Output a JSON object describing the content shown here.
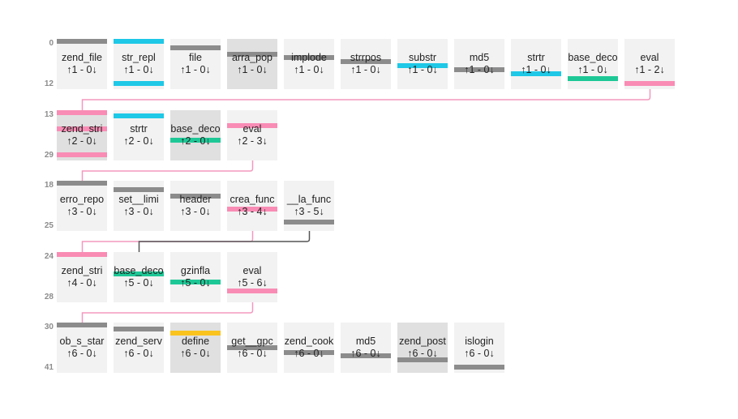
{
  "colors": {
    "gray": "#8c8c8c",
    "cyan": "#1ec8e6",
    "pink": "#f98cb4",
    "green": "#1ec896",
    "yellow": "#fac31e",
    "link_pink": "#f498bd",
    "link_dark": "#555555"
  },
  "rows": [
    {
      "start": "0",
      "end": "12",
      "nodes": [
        {
          "label": "zend_file",
          "counts": "↑1 - 0↓",
          "color": "gray",
          "bar": 0.0,
          "shade": false
        },
        {
          "label": "str_repl",
          "counts": "↑1 - 0↓",
          "color": "cyan",
          "bar": 0.0,
          "bar2": 0.92,
          "shade": false
        },
        {
          "label": "file",
          "counts": "↑1 - 0↓",
          "color": "gray",
          "bar": 0.14,
          "shade": false
        },
        {
          "label": "arra_pop",
          "counts": "↑1 - 0↓",
          "color": "gray",
          "bar": 0.28,
          "shade": true
        },
        {
          "label": "implode",
          "counts": "↑1 - 0↓",
          "color": "gray",
          "bar": 0.36,
          "shade": false
        },
        {
          "label": "strrpos",
          "counts": "↑1 - 0↓",
          "color": "gray",
          "bar": 0.45,
          "shade": false
        },
        {
          "label": "substr",
          "counts": "↑1 - 0↓",
          "color": "cyan",
          "bar": 0.53,
          "shade": false
        },
        {
          "label": "md5",
          "counts": "↑1 - 0↓",
          "color": "gray",
          "bar": 0.63,
          "shade": false
        },
        {
          "label": "strtr",
          "counts": "↑1 - 0↓",
          "color": "cyan",
          "bar": 0.72,
          "shade": false
        },
        {
          "label": "base_deco",
          "counts": "↑1 - 0↓",
          "color": "green",
          "bar": 0.82,
          "shade": false
        },
        {
          "label": "eval",
          "counts": "↑1 - 2↓",
          "color": "pink",
          "bar": 0.92,
          "shade": false
        }
      ]
    },
    {
      "start": "13",
      "end": "29",
      "nodes": [
        {
          "label": "zend_stri",
          "counts": "↑2 - 0↓",
          "color": "pink",
          "bar": 0.0,
          "bar2": 0.35,
          "bar3": 0.92,
          "shade": true
        },
        {
          "label": "strtr",
          "counts": "↑2 - 0↓",
          "color": "cyan",
          "bar": 0.07,
          "shade": false
        },
        {
          "label": "base_deco",
          "counts": "↑2 - 0↓",
          "color": "green",
          "bar": 0.6,
          "shade": true
        },
        {
          "label": "eval",
          "counts": "↑2 - 3↓",
          "color": "pink",
          "bar": 0.28,
          "shade": false
        }
      ]
    },
    {
      "start": "18",
      "end": "25",
      "nodes": [
        {
          "label": "erro_repo",
          "counts": "↑3 - 0↓",
          "color": "gray",
          "bar": 0.0,
          "shade": false
        },
        {
          "label": "set__limi",
          "counts": "↑3 - 0↓",
          "color": "gray",
          "bar": 0.14,
          "shade": false
        },
        {
          "label": "header",
          "counts": "↑3 - 0↓",
          "color": "gray",
          "bar": 0.28,
          "shade": false
        },
        {
          "label": "crea_func",
          "counts": "↑3 - 4↓",
          "color": "pink",
          "bar": 0.57,
          "shade": false
        },
        {
          "label": "__la_func",
          "counts": "↑3 - 5↓",
          "color": "gray",
          "bar": 0.86,
          "shade": false
        }
      ]
    },
    {
      "start": "24",
      "end": "28",
      "nodes": [
        {
          "label": "zend_stri",
          "counts": "↑4 - 0↓",
          "color": "pink",
          "bar": 0.0,
          "shade": false
        },
        {
          "label": "base_deco",
          "counts": "↑5 - 0↓",
          "color": "green",
          "bar": 0.42,
          "shade": false
        },
        {
          "label": "gzinfla",
          "counts": "↑5 - 0↓",
          "color": "green",
          "bar": 0.6,
          "shade": false
        },
        {
          "label": "eval",
          "counts": "↑5 - 6↓",
          "color": "pink",
          "bar": 0.8,
          "shade": false
        }
      ]
    },
    {
      "start": "30",
      "end": "41",
      "nodes": [
        {
          "label": "ob_s_star",
          "counts": "↑6 - 0↓",
          "color": "gray",
          "bar": 0.0,
          "shade": false
        },
        {
          "label": "zend_serv",
          "counts": "↑6 - 0↓",
          "color": "gray",
          "bar": 0.09,
          "shade": false
        },
        {
          "label": "define",
          "counts": "↑6 - 0↓",
          "color": "yellow",
          "bar": 0.18,
          "shade": true
        },
        {
          "label": "get__gpc",
          "counts": "↑6 - 0↓",
          "color": "gray",
          "bar": 0.5,
          "shade": false
        },
        {
          "label": "zend_cook",
          "counts": "↑6 - 0↓",
          "color": "gray",
          "bar": 0.6,
          "shade": false
        },
        {
          "label": "md5",
          "counts": "↑6 - 0↓",
          "color": "gray",
          "bar": 0.68,
          "shade": false
        },
        {
          "label": "zend_post",
          "counts": "↑6 - 0↓",
          "color": "gray",
          "bar": 0.77,
          "shade": true
        },
        {
          "label": "islogin",
          "counts": "↑6 - 0↓",
          "color": "gray",
          "bar": 0.92,
          "shade": false
        }
      ]
    }
  ],
  "links": [
    {
      "from": [
        0,
        10
      ],
      "to": [
        1,
        0
      ],
      "color": "link_pink"
    },
    {
      "from": [
        1,
        3
      ],
      "to": [
        2,
        0
      ],
      "color": "link_pink"
    },
    {
      "from": [
        2,
        3
      ],
      "to": [
        3,
        0
      ],
      "color": "link_pink"
    },
    {
      "from": [
        2,
        4
      ],
      "to": [
        3,
        1
      ],
      "color": "link_dark"
    },
    {
      "from": [
        3,
        3
      ],
      "to": [
        4,
        0
      ],
      "color": "link_pink"
    }
  ]
}
